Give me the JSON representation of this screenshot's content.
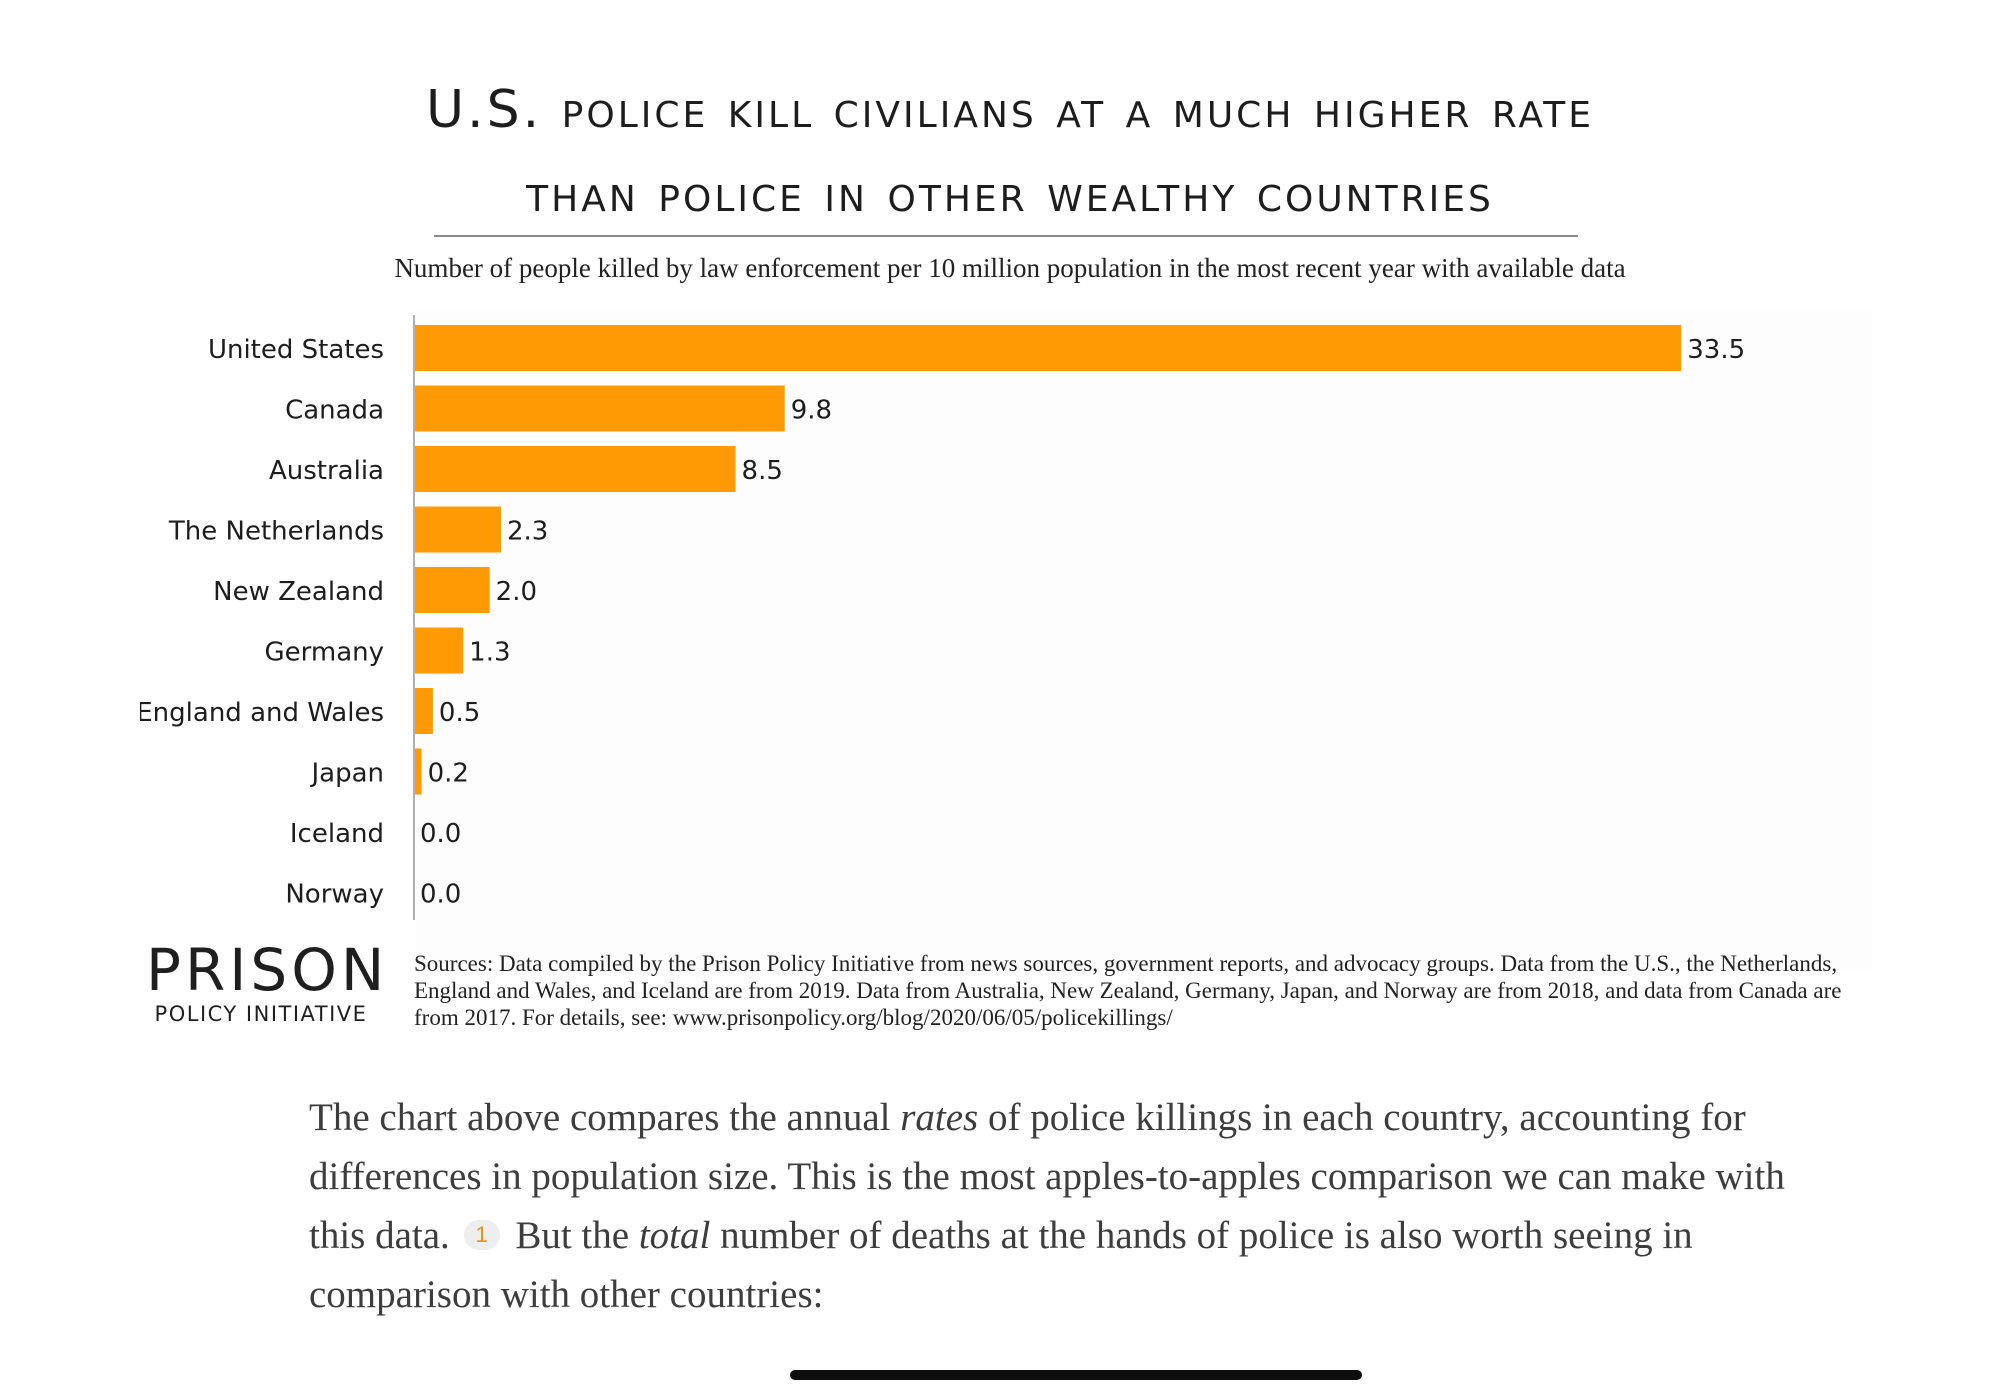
{
  "chart_data": {
    "type": "bar",
    "orientation": "horizontal",
    "title_line1": "U.S. police kill civilians at a much higher rate",
    "title_line2": "than police in other wealthy countries",
    "subtitle": "Number of people killed by law enforcement per 10 million population in the most recent year with available data",
    "categories": [
      "United States",
      "Canada",
      "Australia",
      "The Netherlands",
      "New Zealand",
      "Germany",
      "England and Wales",
      "Japan",
      "Iceland",
      "Norway"
    ],
    "values": [
      33.5,
      9.8,
      8.5,
      2.3,
      2.0,
      1.3,
      0.5,
      0.2,
      0.0,
      0.0
    ],
    "value_labels": [
      "33.5",
      "9.8",
      "8.5",
      "2.3",
      "2.0",
      "1.3",
      "0.5",
      "0.2",
      "0.0",
      "0.0"
    ],
    "xlim": [
      0,
      35
    ],
    "xlabel": "",
    "ylabel": "",
    "grid": false,
    "bar_color": "#ff9a05"
  },
  "logo": {
    "main": "PRISON",
    "sub": "POLICY INITIATIVE"
  },
  "sources": "Sources: Data compiled by the Prison Policy Initiative from news sources, government reports, and advocacy groups. Data from the U.S., the Netherlands, England and Wales, and Iceland are from 2019. Data from Australia, New Zealand, Germany, Japan, and Norway are from 2018, and data from Canada are from 2017. For details,  see: www.prisonpolicy.org/blog/2020/06/05/policekillings/",
  "article": {
    "p1_a": "The chart above compares the annual ",
    "p1_em1": "rates",
    "p1_b": " of police killings in each country, accounting for differences in population size. This is the most apples-to-apples comparison we can make with this data.",
    "footnote": "1",
    "p1_c": " But the ",
    "p1_em2": "total",
    "p1_d": " number of deaths at the hands of police is also worth seeing in comparison with other countries:"
  },
  "colors": {
    "accent": "#ff9a05",
    "footnote": "#ef8f16"
  }
}
